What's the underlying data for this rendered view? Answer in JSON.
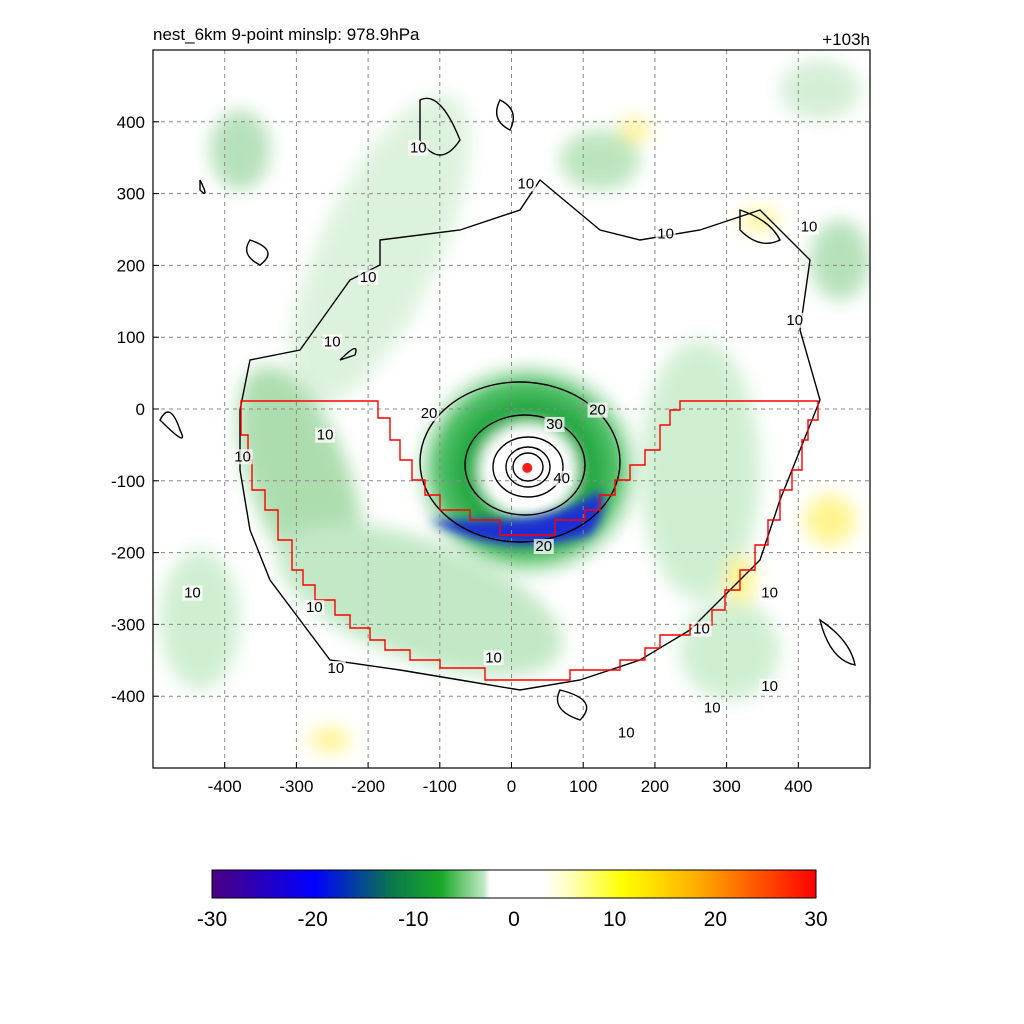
{
  "chart_data": {
    "type": "heatmap",
    "title_left": "nest_6km  9-point minslp: 978.9hPa",
    "title_right": "+103h",
    "xlabel": "",
    "ylabel": "",
    "xlim": [
      -500,
      500
    ],
    "ylim": [
      -500,
      500
    ],
    "x_ticks": [
      -400,
      -300,
      -200,
      -100,
      0,
      100,
      200,
      300,
      400
    ],
    "y_ticks": [
      400,
      300,
      200,
      100,
      0,
      -100,
      -200,
      -300,
      -400
    ],
    "x_tick_labels": [
      "-400",
      "-300",
      "-200",
      "-100",
      "0",
      "100",
      "200",
      "300",
      "400"
    ],
    "y_tick_labels": [
      "400",
      "300",
      "200",
      "100",
      "0",
      "-100",
      "-200",
      "-300",
      "-400"
    ],
    "grid": true,
    "colorbar": {
      "min": -30,
      "max": 30,
      "ticks": [
        -30,
        -20,
        -10,
        0,
        10,
        20,
        30
      ],
      "tick_labels": [
        "-30",
        "-20",
        "-10",
        "0",
        "10",
        "20",
        "30"
      ],
      "colors": [
        "#4b0082",
        "#0000ff",
        "#00aa22",
        "#ffffff",
        "#ffff00",
        "#ff9900",
        "#ff0000"
      ]
    },
    "contour_levels": [
      10,
      20,
      30,
      40
    ],
    "contour_labels": [
      {
        "text": "10",
        "x": -250,
        "y": 90
      },
      {
        "text": "10",
        "x": -200,
        "y": 180
      },
      {
        "text": "10",
        "x": -130,
        "y": 360
      },
      {
        "text": "10",
        "x": 20,
        "y": 310
      },
      {
        "text": "10",
        "x": 215,
        "y": 240
      },
      {
        "text": "10",
        "x": 415,
        "y": 250
      },
      {
        "text": "10",
        "x": 395,
        "y": 120
      },
      {
        "text": "10",
        "x": -375,
        "y": -70
      },
      {
        "text": "10",
        "x": -260,
        "y": -40
      },
      {
        "text": "10",
        "x": -445,
        "y": -260
      },
      {
        "text": "10",
        "x": -275,
        "y": -280
      },
      {
        "text": "10",
        "x": -245,
        "y": -365
      },
      {
        "text": "10",
        "x": -25,
        "y": -350
      },
      {
        "text": "10",
        "x": 265,
        "y": -310
      },
      {
        "text": "10",
        "x": 360,
        "y": -260
      },
      {
        "text": "10",
        "x": 360,
        "y": -390
      },
      {
        "text": "10",
        "x": 280,
        "y": -420
      },
      {
        "text": "10",
        "x": 160,
        "y": -455
      },
      {
        "text": "20",
        "x": -115,
        "y": -10
      },
      {
        "text": "20",
        "x": 120,
        "y": -5
      },
      {
        "text": "30",
        "x": 60,
        "y": -25
      },
      {
        "text": "40",
        "x": 70,
        "y": -100
      },
      {
        "text": "20",
        "x": 45,
        "y": -195
      }
    ],
    "storm_center": {
      "x": 22,
      "y": -82
    },
    "boundary_color": "#ff0000",
    "contour_color": "#000000"
  }
}
